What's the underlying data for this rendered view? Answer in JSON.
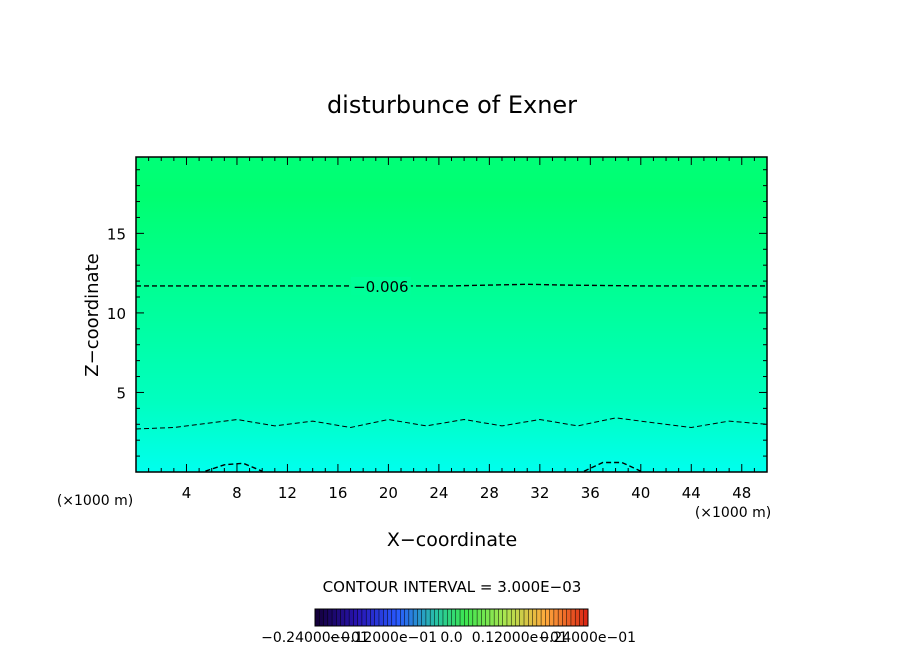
{
  "chart_data": {
    "type": "heatmap",
    "title": "disturbunce of Exner",
    "xlabel": "X−coordinate",
    "ylabel": "Z−coordinate",
    "x_unit_left": "(×1000 m)",
    "x_unit_right": "(×1000 m)",
    "xlim": [
      0,
      50
    ],
    "ylim": [
      0,
      19.8
    ],
    "x_ticks": [
      4,
      8,
      12,
      16,
      20,
      24,
      28,
      32,
      36,
      40,
      44,
      48
    ],
    "y_ticks": [
      5,
      10,
      15
    ],
    "x_tick_labels": [
      "4",
      "8",
      "12",
      "16",
      "20",
      "24",
      "28",
      "32",
      "36",
      "40",
      "44",
      "48"
    ],
    "y_tick_labels": [
      "5",
      "10",
      "15"
    ],
    "contour_interval_text": "CONTOUR INTERVAL = 3.000E−03",
    "contour_interval": 0.003,
    "contours": [
      {
        "label": "−0.006",
        "level": -0.006,
        "x": [
          0,
          5,
          10,
          15,
          20,
          25,
          28,
          31,
          34,
          40,
          45,
          50
        ],
        "z": [
          11.7,
          11.7,
          11.7,
          11.7,
          11.7,
          11.7,
          11.75,
          11.8,
          11.75,
          11.7,
          11.7,
          11.7
        ]
      },
      {
        "label": "",
        "level": -0.009,
        "x": [
          0,
          3,
          6,
          8,
          11,
          14,
          17,
          20,
          23,
          26,
          29,
          32,
          35,
          38,
          41,
          44,
          47,
          50
        ],
        "z": [
          2.7,
          2.8,
          3.1,
          3.3,
          2.9,
          3.2,
          2.8,
          3.3,
          2.9,
          3.3,
          2.9,
          3.3,
          2.9,
          3.4,
          3.1,
          2.8,
          3.2,
          3.0
        ]
      },
      {
        "label": "",
        "level": -0.012,
        "x": [
          5.5,
          7,
          8.5,
          10
        ],
        "z": [
          0.05,
          0.45,
          0.55,
          0.05
        ]
      },
      {
        "label": "",
        "level": -0.012,
        "x": [
          35.5,
          37,
          38.5,
          40
        ],
        "z": [
          0.05,
          0.6,
          0.6,
          0.05
        ]
      }
    ],
    "colorbar": {
      "min": -0.024,
      "max": 0.024,
      "tick_labels": [
        "−0.24000e−01",
        "−0.12000e−01",
        "0.0",
        "0.12000e−01",
        "0.24000e−01"
      ]
    },
    "colors": {
      "field_top": "#00ff80",
      "field_mid": "#00ffa0",
      "field_bottom": "#00ffe8",
      "contour": "#000000"
    }
  }
}
